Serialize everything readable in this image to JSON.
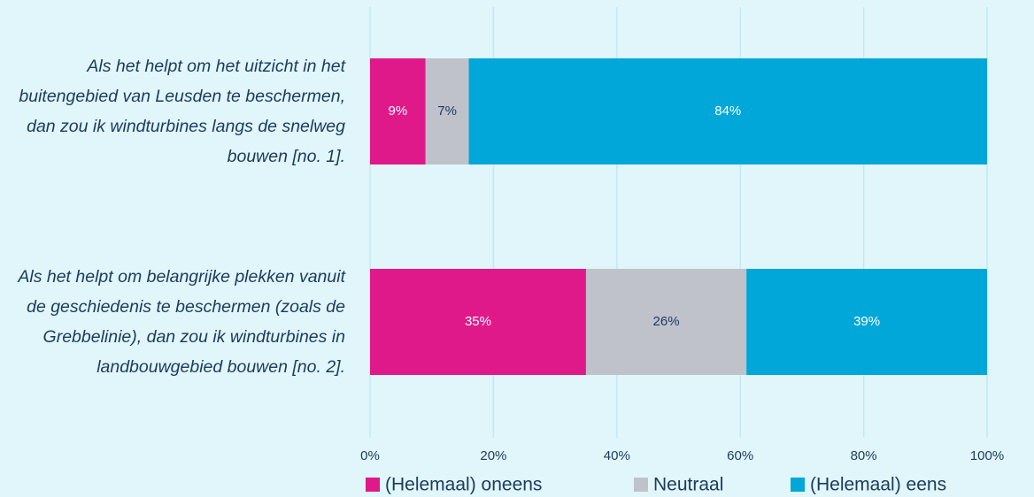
{
  "chart_data": {
    "type": "stacked-barh",
    "categories": [
      "Als het helpt om het uitzicht in het buitengebied van Leusden te beschermen, dan zou ik windturbines langs de snelweg bouwen [no. 1].",
      "Als het helpt om belangrijke plekken vanuit de geschiedenis te beschermen (zoals de Grebbelinie), dan zou ik windturbines in landbouwgebied bouwen [no. 2]."
    ],
    "series": [
      {
        "name": "(Helemaal) oneens",
        "color": "#e0198a",
        "values": [
          9,
          35
        ],
        "value_labels": [
          "9%",
          "35%"
        ]
      },
      {
        "name": "Neutraal",
        "color": "#bfc2cb",
        "values": [
          7,
          26
        ],
        "value_labels": [
          "7%",
          "26%"
        ]
      },
      {
        "name": "(Helemaal) eens",
        "color": "#00a7d8",
        "values": [
          84,
          39
        ],
        "value_labels": [
          "84%",
          "39%"
        ]
      }
    ],
    "xlim": [
      0,
      100
    ],
    "xticks": [
      {
        "value": 0,
        "label": "0%"
      },
      {
        "value": 20,
        "label": "20%"
      },
      {
        "value": 40,
        "label": "40%"
      },
      {
        "value": 60,
        "label": "60%"
      },
      {
        "value": 80,
        "label": "80%"
      },
      {
        "value": 100,
        "label": "100%"
      }
    ],
    "grid": true,
    "legend": "bottom"
  }
}
